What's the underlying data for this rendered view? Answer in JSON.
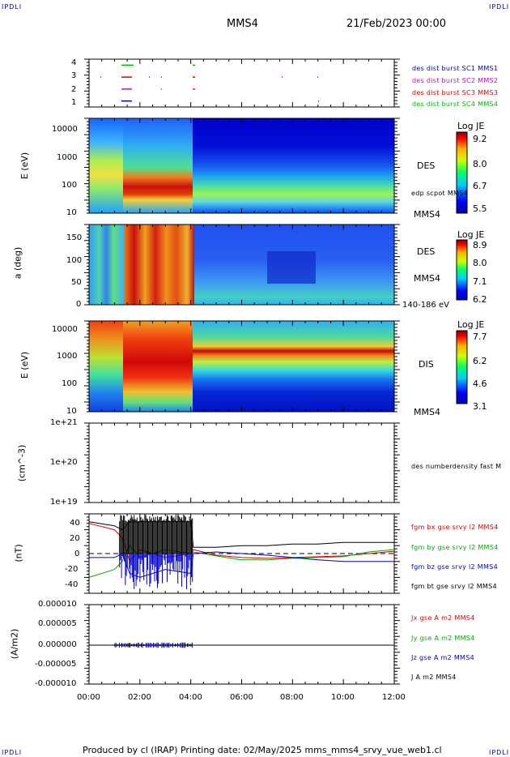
{
  "header": {
    "corner_left_top": "IPDLI",
    "corner_right_top": "IPDLI",
    "corner_left_bottom": "IPDLI",
    "corner_right_bottom": "IPDLI",
    "spacecraft": "MMS4",
    "date_time": "21/Feb/2023 00:00"
  },
  "panels": {
    "burst": {
      "yticks": [
        "4",
        "3",
        "2",
        "1"
      ],
      "legend": [
        {
          "text": "des dist burst SC1 MMS1",
          "color": "#0000cc"
        },
        {
          "text": "des dist burst SC2 MMS2",
          "color": "#cc00cc"
        },
        {
          "text": "des dist burst SC3 MMS3",
          "color": "#dd0000"
        },
        {
          "text": "des dist burst SC4 MMS4",
          "color": "#00bb00"
        }
      ]
    },
    "des_energy": {
      "ylabel": "E (eV)",
      "yticks": [
        "10000",
        "1000",
        "100",
        "10"
      ],
      "label": "DES",
      "note": "edp scpot MMS4",
      "bottom_label": "MMS4",
      "cb_title": "Log JE",
      "cb_ticks": [
        "9.2",
        "8.0",
        "6.7",
        "5.5"
      ]
    },
    "des_pitch": {
      "ylabel": "a (deg)",
      "yticks": [
        "150",
        "100",
        "50",
        "0"
      ],
      "label": "DES",
      "label2": "MMS4",
      "bottom_label": "140-186 eV",
      "cb_title": "Log JE",
      "cb_ticks": [
        "8.9",
        "8.0",
        "7.1",
        "6.2"
      ]
    },
    "dis_energy": {
      "ylabel": "E (eV)",
      "yticks": [
        "10000",
        "1000",
        "100",
        "10"
      ],
      "label": "DIS",
      "bottom_label": "MMS4",
      "cb_title": "Log JE",
      "cb_ticks": [
        "7.7",
        "6.2",
        "4.6",
        "3.1"
      ]
    },
    "density": {
      "ylabel": "(cm^-3)",
      "yticks": [
        "1e+21",
        "1e+20",
        "1e+19"
      ],
      "legend": [
        {
          "text": "des numberdensity fast M",
          "color": "#000000"
        }
      ]
    },
    "field": {
      "ylabel": "(nT)",
      "yticks": [
        "40",
        "20",
        "0",
        "-20",
        "-40"
      ],
      "legend": [
        {
          "text": "fgm bx gse srvy l2 MMS4",
          "color": "#dd0000"
        },
        {
          "text": "fgm by gse srvy l2 MMS4",
          "color": "#00aa00"
        },
        {
          "text": "fgm bz gse srvy l2 MMS4",
          "color": "#0000cc"
        },
        {
          "text": "fgm bt gse srvy l2 MMS4",
          "color": "#000000"
        }
      ]
    },
    "current": {
      "ylabel": "(A/m2)",
      "yticks": [
        "0.000010",
        "0.000005",
        "0.000000",
        "-0.000005",
        "-0.000010"
      ],
      "legend": [
        {
          "text": "Jx gse A m2 MMS4",
          "color": "#dd0000"
        },
        {
          "text": "Jy gse A m2 MMS4",
          "color": "#00aa00"
        },
        {
          "text": "Jz gse A m2 MMS4",
          "color": "#0000cc"
        },
        {
          "text": "J A m2 MMS4",
          "color": "#000000"
        }
      ]
    }
  },
  "xaxis": {
    "ticks": [
      "00:00",
      "02:00",
      "04:00",
      "06:00",
      "08:00",
      "10:00",
      "12:00"
    ]
  },
  "footer": {
    "text": "Produced by cl (IRAP)   Printing date: 02/May/2025   mms_mms4_srvy_vue_web1.cl"
  },
  "chart_data": [
    {
      "type": "line",
      "title": "des dist burst",
      "x_range": [
        "00:00",
        "12:00"
      ],
      "ylim": [
        0.5,
        4.5
      ],
      "series": [
        {
          "name": "des dist burst SC1 MMS1",
          "y": 1
        },
        {
          "name": "des dist burst SC2 MMS2",
          "y": 2
        },
        {
          "name": "des dist burst SC3 MMS3",
          "y": 3
        },
        {
          "name": "des dist burst SC4 MMS4",
          "y": 4
        }
      ]
    },
    {
      "type": "heatmap",
      "title": "DES",
      "ylabel": "E (eV)",
      "y_scale": "log",
      "ylim": [
        10,
        30000
      ],
      "colorbar": {
        "title": "Log JE",
        "range": [
          5.5,
          9.2
        ]
      },
      "x_range": [
        "00:00",
        "12:00"
      ]
    },
    {
      "type": "heatmap",
      "title": "DES",
      "ylabel": "a (deg)",
      "ylim": [
        0,
        180
      ],
      "energy_band": "140-186 eV",
      "colorbar": {
        "title": "Log JE",
        "range": [
          6.2,
          8.9
        ]
      },
      "x_range": [
        "00:00",
        "12:00"
      ]
    },
    {
      "type": "heatmap",
      "title": "DIS",
      "ylabel": "E (eV)",
      "y_scale": "log",
      "ylim": [
        10,
        20000
      ],
      "colorbar": {
        "title": "Log JE",
        "range": [
          3.1,
          7.7
        ]
      },
      "x_range": [
        "00:00",
        "12:00"
      ]
    },
    {
      "type": "line",
      "title": "des numberdensity fast M",
      "ylabel": "(cm^-3)",
      "y_scale": "log",
      "ylim": [
        1e+19,
        1e+21
      ],
      "series": []
    },
    {
      "type": "line",
      "ylabel": "(nT)",
      "ylim": [
        -50,
        50
      ],
      "x_hours": [
        0,
        1.0,
        1.3,
        1.6,
        2.0,
        3.0,
        4.0,
        4.1,
        5.0,
        6.0,
        7.0,
        8.0,
        9.0,
        10.0,
        11.0,
        12.0
      ],
      "series": [
        {
          "name": "fgm bx gse srvy l2 MMS4",
          "values": [
            38,
            30,
            20,
            -10,
            5,
            -5,
            0,
            5,
            -2,
            -5,
            -6,
            -5,
            -4,
            -3,
            0,
            3
          ]
        },
        {
          "name": "fgm by gse srvy l2 MMS4",
          "values": [
            -30,
            -20,
            -10,
            10,
            -5,
            5,
            0,
            2,
            -3,
            -8,
            -8,
            -6,
            -5,
            -4,
            2,
            5
          ]
        },
        {
          "name": "fgm bz gse srvy l2 MMS4",
          "values": [
            -5,
            -5,
            0,
            -25,
            -30,
            -20,
            -25,
            0,
            2,
            0,
            -2,
            -5,
            -8,
            -10,
            -10,
            -10
          ]
        },
        {
          "name": "fgm bt gse srvy l2 MMS4",
          "values": [
            40,
            35,
            30,
            40,
            40,
            40,
            40,
            8,
            8,
            10,
            10,
            12,
            12,
            14,
            14,
            14
          ]
        }
      ]
    },
    {
      "type": "line",
      "ylabel": "(A/m2)",
      "ylim": [
        -1e-05,
        1e-05
      ],
      "series": [
        {
          "name": "Jx gse A m2 MMS4",
          "values": [
            0,
            0,
            0
          ]
        },
        {
          "name": "Jy gse A m2 MMS4",
          "values": [
            0,
            0,
            0
          ]
        },
        {
          "name": "Jz gse A m2 MMS4",
          "values": [
            0,
            0,
            0
          ]
        },
        {
          "name": "J A m2 MMS4",
          "values": [
            0,
            0,
            0
          ]
        }
      ]
    }
  ]
}
